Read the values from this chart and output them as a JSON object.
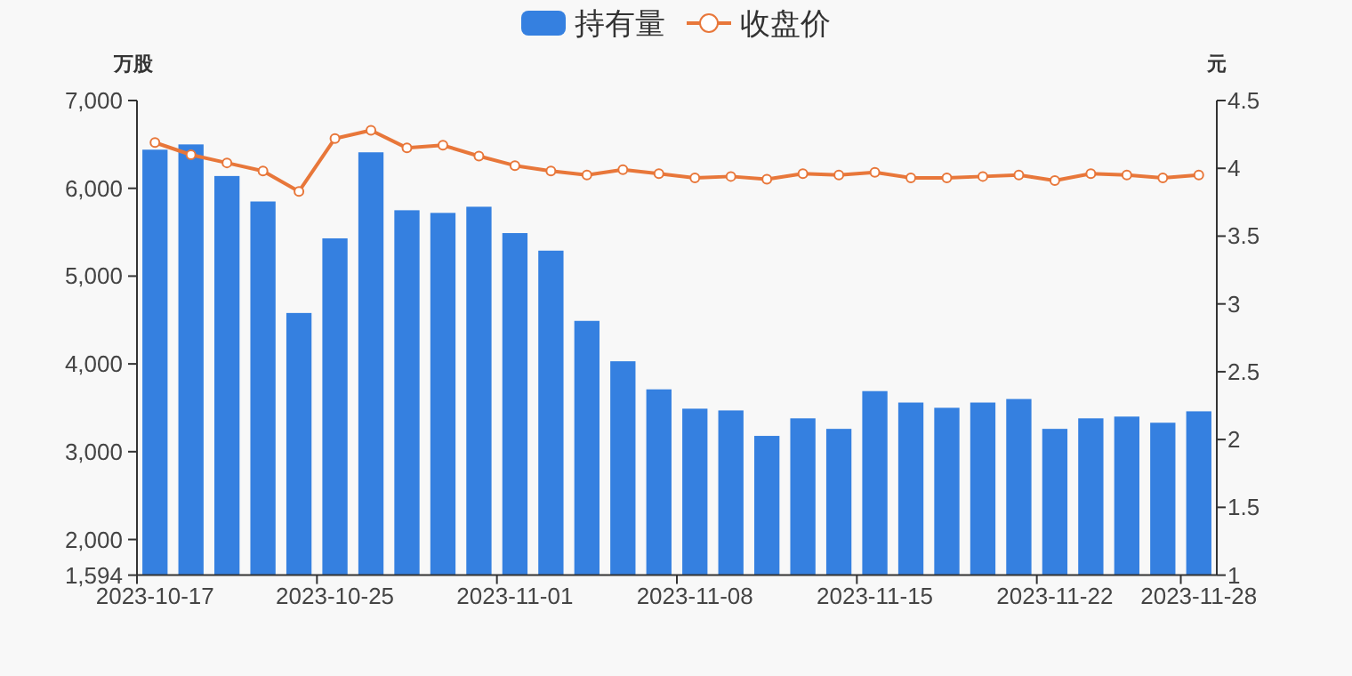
{
  "chart_data": {
    "type": "bar",
    "ylabel": "万股",
    "y2label": "元",
    "categories": [
      "2023-10-17",
      null,
      null,
      null,
      null,
      "2023-10-25",
      null,
      null,
      null,
      null,
      "2023-11-01",
      null,
      null,
      null,
      null,
      "2023-11-08",
      null,
      null,
      null,
      null,
      "2023-11-15",
      null,
      null,
      null,
      null,
      "2023-11-22",
      null,
      null,
      null,
      "2023-11-28"
    ],
    "series": [
      {
        "name": "持有量",
        "color": "#3580e0",
        "values": [
          6440,
          6500,
          6140,
          5850,
          4580,
          5430,
          6410,
          5750,
          5720,
          5790,
          5490,
          5290,
          4490,
          4030,
          3710,
          3490,
          3470,
          3180,
          3380,
          3260,
          3690,
          3560,
          3500,
          3560,
          3600,
          3260,
          3380,
          3400,
          3330,
          3460
        ]
      },
      {
        "name": "收盘价",
        "type": "line",
        "axis": "y2",
        "color": "#e8773a",
        "values": [
          4.19,
          4.1,
          4.04,
          3.98,
          3.83,
          4.22,
          4.28,
          4.15,
          4.17,
          4.09,
          4.02,
          3.98,
          3.95,
          3.99,
          3.96,
          3.93,
          3.94,
          3.92,
          3.96,
          3.95,
          3.97,
          3.93,
          3.93,
          3.94,
          3.95,
          3.91,
          3.96,
          3.95,
          3.93,
          3.95
        ]
      }
    ],
    "ylim": [
      1594,
      7000
    ],
    "yticks": [
      {
        "value": 1594,
        "label": "1,594"
      },
      {
        "value": 2000,
        "label": "2,000"
      },
      {
        "value": 3000,
        "label": "3,000"
      },
      {
        "value": 4000,
        "label": "4,000"
      },
      {
        "value": 5000,
        "label": "5,000"
      },
      {
        "value": 6000,
        "label": "6,000"
      },
      {
        "value": 7000,
        "label": "7,000"
      }
    ],
    "y2lim": [
      1,
      4.5
    ],
    "y2ticks": [
      1,
      1.5,
      2,
      2.5,
      3,
      3.5,
      4,
      4.5
    ],
    "legend": "top",
    "marker": "circle",
    "grid": false
  }
}
